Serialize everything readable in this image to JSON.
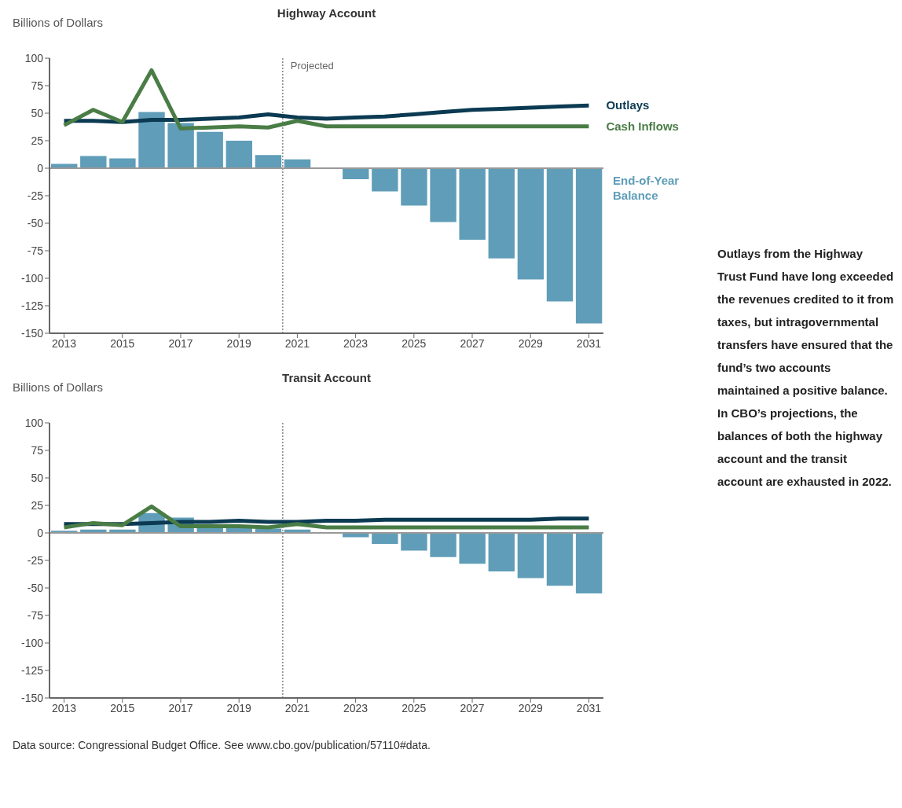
{
  "chart_data": [
    {
      "type": "bar",
      "title": "Highway Account",
      "ylabel": "Billions of Dollars",
      "x": [
        2013,
        2014,
        2015,
        2016,
        2017,
        2018,
        2019,
        2020,
        2021,
        2022,
        2023,
        2024,
        2025,
        2026,
        2027,
        2028,
        2029,
        2030,
        2031
      ],
      "series": [
        {
          "name": "End-of-Year Balance",
          "type": "bar",
          "color": "#5f9db8",
          "values": [
            4,
            11,
            9,
            51,
            41,
            33,
            25,
            12,
            8,
            0,
            -10,
            -21,
            -34,
            -49,
            -65,
            -82,
            -101,
            -121,
            -141
          ]
        },
        {
          "name": "Outlays",
          "type": "line",
          "color": "#0b3a52",
          "values": [
            43,
            43,
            42,
            44,
            44,
            45,
            46,
            49,
            46,
            45,
            46,
            47,
            49,
            51,
            53,
            54,
            55,
            56,
            57
          ]
        },
        {
          "name": "Cash Inflows",
          "type": "line",
          "color": "#4a7d46",
          "values": [
            39,
            53,
            42,
            89,
            36,
            37,
            38,
            37,
            43,
            38,
            38,
            38,
            38,
            38,
            38,
            38,
            38,
            38,
            38
          ]
        }
      ],
      "xlim": [
        2012.5,
        2031.5
      ],
      "xticks": [
        2013,
        2015,
        2017,
        2019,
        2021,
        2023,
        2025,
        2027,
        2029,
        2031
      ],
      "ylim": [
        -150,
        100
      ],
      "yticks": [
        -150,
        -125,
        -100,
        -75,
        -50,
        -25,
        0,
        25,
        50,
        75,
        100
      ],
      "ref_lines": [
        {
          "axis": "x",
          "value": 2020.5,
          "label": "Projected",
          "line_style": "dotted",
          "color": "#888888"
        },
        {
          "axis": "y",
          "value": 0,
          "color": "#999999"
        }
      ],
      "grid": false,
      "legend": false,
      "marker": "none"
    },
    {
      "type": "bar",
      "title": "Transit Account",
      "ylabel": "Billions of Dollars",
      "x": [
        2013,
        2014,
        2015,
        2016,
        2017,
        2018,
        2019,
        2020,
        2021,
        2022,
        2023,
        2024,
        2025,
        2026,
        2027,
        2028,
        2029,
        2030,
        2031
      ],
      "series": [
        {
          "type": "bar",
          "color": "#5f9db8",
          "values": [
            2,
            3,
            3,
            18,
            14,
            6,
            5,
            4,
            3,
            null,
            -4,
            -10,
            -16,
            -22,
            -28,
            -35,
            -41,
            -48,
            -55
          ]
        },
        {
          "type": "line",
          "color": "#0b3a52",
          "values": [
            8,
            8,
            8,
            9,
            10,
            10,
            11,
            10,
            10,
            11,
            11,
            12,
            12,
            12,
            12,
            12,
            12,
            13,
            13
          ]
        },
        {
          "type": "line",
          "color": "#4a7d46",
          "values": [
            5,
            9,
            7,
            24,
            6,
            6,
            6,
            5,
            8,
            5,
            5,
            5,
            5,
            5,
            5,
            5,
            5,
            5,
            5
          ]
        }
      ],
      "xlim": [
        2012.5,
        2031.5
      ],
      "xticks": [
        2013,
        2015,
        2017,
        2019,
        2021,
        2023,
        2025,
        2027,
        2029,
        2031
      ],
      "ylim": [
        -150,
        100
      ],
      "yticks": [
        -150,
        -125,
        -100,
        -75,
        -50,
        -25,
        0,
        25,
        50,
        75,
        100
      ],
      "ref_lines": [
        {
          "axis": "x",
          "value": 2020.5,
          "line_style": "dotted",
          "color": "#888888"
        },
        {
          "axis": "y",
          "value": 0,
          "color": "#999999"
        }
      ],
      "annotations": [
        "Data source: Congressional Budget Office. See www.cbo.gov/publication/57110#data."
      ],
      "grid": false,
      "legend": false,
      "marker": "none"
    },
    {
      "type": "other",
      "annotations": [
        "Outlays from the Highway Trust Fund have long exceeded the revenues credited to it from taxes, but intragovernmental transfers have ensured that the fund’s two accounts maintained a positive balance. In CBO’s projections, the balances of both the highway account and the transit account are exhausted in 2022."
      ]
    }
  ]
}
